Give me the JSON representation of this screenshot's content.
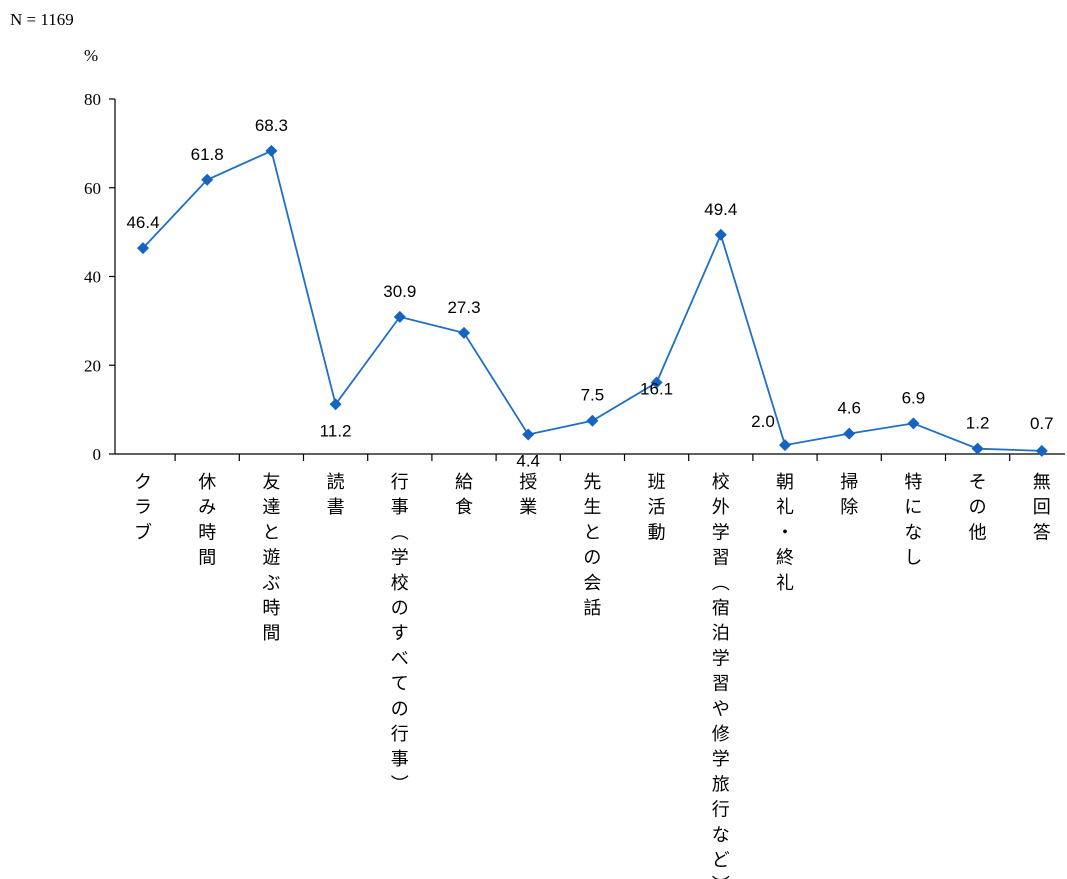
{
  "chart_data": {
    "type": "line",
    "sample_note": "N = 1169",
    "y_unit": "%",
    "ylim": [
      0,
      80
    ],
    "yticks": [
      0,
      20,
      40,
      60,
      80
    ],
    "grid": false,
    "line_color": "#1f6fc5",
    "marker_color": "#1565c0",
    "categories": [
      "クラブ",
      "休み時間",
      "友達と遊ぶ時間",
      "読書",
      "行事（学校のすべての行事）",
      "給食",
      "授業",
      "先生との会話",
      "班活動",
      "校外学習（宿泊学習や修学旅行など）",
      "朝礼・終礼",
      "掃除",
      "特になし",
      "その他",
      "無回答"
    ],
    "values": [
      46.4,
      61.8,
      68.3,
      11.2,
      30.9,
      27.3,
      4.4,
      7.5,
      16.1,
      49.4,
      2.0,
      4.6,
      6.9,
      1.2,
      0.7
    ],
    "data_labels": [
      "46.4",
      "61.8",
      "68.3",
      "11.2",
      "30.9",
      "27.3",
      "4.4",
      "7.5",
      "16.1",
      "49.4",
      "2.0",
      "4.6",
      "6.9",
      "1.2",
      "0.7"
    ]
  }
}
